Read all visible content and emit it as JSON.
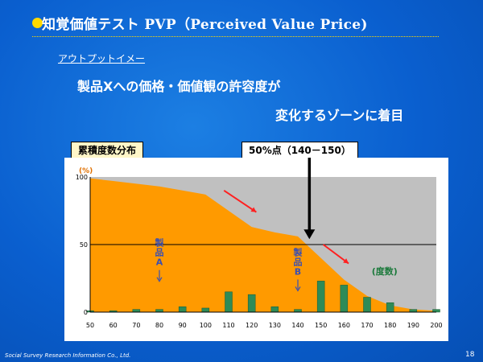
{
  "slide": {
    "title": "知覚価値テスト PVP（Perceived Value Price)",
    "subtitle": "アウトプットイメー",
    "heading_line1": "製品Xへの価格・価値観の許容度が",
    "heading_line2": "変化するゾーンに着目",
    "footer_left": "Social Survey Research Information Co., Ltd.",
    "page_number": "18"
  },
  "chart_data": {
    "type": "area",
    "title": "累積度数分布",
    "annotation_top": "50%点（140－150）",
    "y_unit": "(%)",
    "series_label": "(度数)",
    "product_a_label": "製品A",
    "product_b_label": "製品B",
    "x_ticks": [
      "50",
      "60",
      "70",
      "80",
      "90",
      "100",
      "110",
      "120",
      "130",
      "140",
      "150",
      "160",
      "170",
      "180",
      "190",
      "200"
    ],
    "y_ticks": [
      "0",
      "50",
      "100"
    ],
    "xlim": [
      50,
      200
    ],
    "ylim": [
      0,
      100
    ],
    "cumulative": {
      "x": [
        50,
        60,
        70,
        80,
        90,
        100,
        110,
        120,
        130,
        140,
        150,
        160,
        170,
        180,
        190,
        200
      ],
      "y": [
        99,
        97,
        95,
        93,
        90,
        87,
        75,
        63,
        59,
        56,
        40,
        24,
        12,
        5,
        2,
        1
      ]
    },
    "frequency": {
      "x": [
        50,
        60,
        70,
        80,
        90,
        100,
        110,
        120,
        130,
        140,
        150,
        160,
        170,
        180,
        190,
        200
      ],
      "y": [
        1,
        1,
        2,
        2,
        4,
        3,
        15,
        13,
        4,
        2,
        23,
        20,
        11,
        7,
        2,
        2
      ]
    },
    "reference_line_y": 50,
    "colors": {
      "area": "#ff9a00",
      "plot_bg": "#c0c0c0",
      "bars": "#2e8b57",
      "arrow": "#ff2020"
    }
  }
}
